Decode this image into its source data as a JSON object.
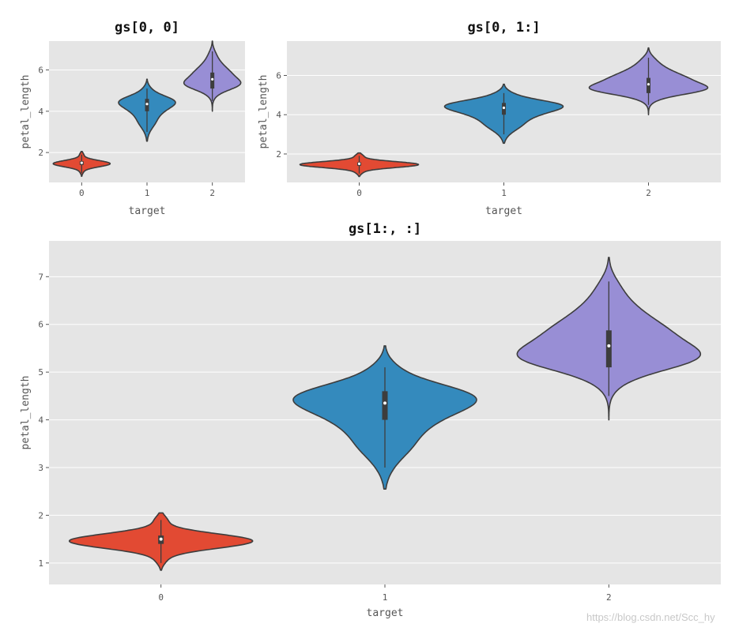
{
  "chart_data": [
    {
      "type": "violin",
      "title": "gs[0, 0]",
      "xlabel": "target",
      "ylabel": "petal_length",
      "categories": [
        "0",
        "1",
        "2"
      ],
      "xlim": [
        -0.5,
        2.5
      ],
      "ylim": [
        0.55,
        7.4
      ],
      "yticks": [
        2,
        4,
        6
      ],
      "colors": [
        "#e24a33",
        "#348abd",
        "#988ed5"
      ],
      "violins": [
        {
          "category": "0",
          "min": 1.0,
          "q1": 1.4,
          "median": 1.5,
          "q3": 1.575,
          "max": 1.9,
          "kde_min": 0.85,
          "kde_max": 2.05
        },
        {
          "category": "1",
          "min": 3.0,
          "q1": 4.0,
          "median": 4.35,
          "q3": 4.6,
          "max": 5.1,
          "kde_min": 2.55,
          "kde_max": 5.55
        },
        {
          "category": "2",
          "min": 4.5,
          "q1": 5.1,
          "median": 5.55,
          "q3": 5.875,
          "max": 6.9,
          "kde_min": 4.0,
          "kde_max": 7.4
        }
      ]
    },
    {
      "type": "violin",
      "title": "gs[0, 1:]",
      "xlabel": "target",
      "ylabel": "petal_length",
      "categories": [
        "0",
        "1",
        "2"
      ],
      "xlim": [
        -0.5,
        2.5
      ],
      "ylim": [
        0.55,
        7.75
      ],
      "yticks": [
        2,
        4,
        6
      ],
      "colors": [
        "#e24a33",
        "#348abd",
        "#988ed5"
      ],
      "violins": [
        {
          "category": "0",
          "min": 1.0,
          "q1": 1.4,
          "median": 1.5,
          "q3": 1.575,
          "max": 1.9,
          "kde_min": 0.85,
          "kde_max": 2.05
        },
        {
          "category": "1",
          "min": 3.0,
          "q1": 4.0,
          "median": 4.35,
          "q3": 4.6,
          "max": 5.1,
          "kde_min": 2.55,
          "kde_max": 5.55
        },
        {
          "category": "2",
          "min": 4.5,
          "q1": 5.1,
          "median": 5.55,
          "q3": 5.875,
          "max": 6.9,
          "kde_min": 4.0,
          "kde_max": 7.4
        }
      ]
    },
    {
      "type": "violin",
      "title": "gs[1:, :]",
      "xlabel": "target",
      "ylabel": "petal_length",
      "categories": [
        "0",
        "1",
        "2"
      ],
      "xlim": [
        -0.5,
        2.5
      ],
      "ylim": [
        0.55,
        7.75
      ],
      "yticks": [
        1,
        2,
        3,
        4,
        5,
        6,
        7
      ],
      "colors": [
        "#e24a33",
        "#348abd",
        "#988ed5"
      ],
      "violins": [
        {
          "category": "0",
          "min": 1.0,
          "q1": 1.4,
          "median": 1.5,
          "q3": 1.575,
          "max": 1.9,
          "kde_min": 0.85,
          "kde_max": 2.05
        },
        {
          "category": "1",
          "min": 3.0,
          "q1": 4.0,
          "median": 4.35,
          "q3": 4.6,
          "max": 5.1,
          "kde_min": 2.55,
          "kde_max": 5.55
        },
        {
          "category": "2",
          "min": 4.5,
          "q1": 5.1,
          "median": 5.55,
          "q3": 5.875,
          "max": 6.9,
          "kde_min": 4.0,
          "kde_max": 7.4
        }
      ]
    }
  ],
  "watermark": "https://blog.csdn.net/Scc_hy"
}
